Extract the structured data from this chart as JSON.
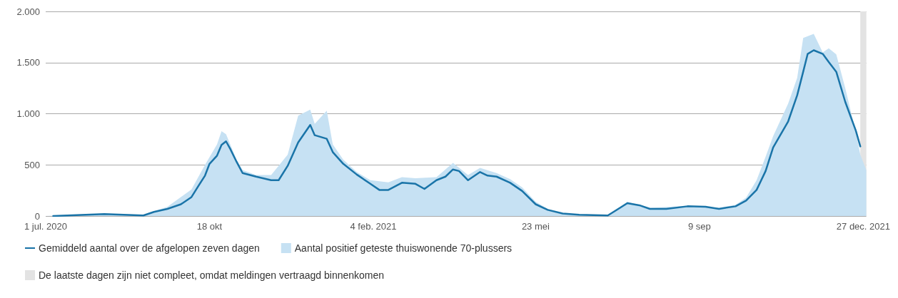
{
  "chart_data": {
    "type": "area",
    "legend": "bottom left",
    "grid": "y",
    "xlim": [
      "2020-07-01",
      "2021-12-29"
    ],
    "ylim": [
      0,
      2000
    ],
    "xticks": [
      {
        "value": "2020-07-01",
        "label": "1 jul. 2020"
      },
      {
        "value": "2020-10-18",
        "label": "18 okt"
      },
      {
        "value": "2021-02-04",
        "label": "4 feb. 2021"
      },
      {
        "value": "2021-05-23",
        "label": "23 mei"
      },
      {
        "value": "2021-09-09",
        "label": "9 sep"
      },
      {
        "value": "2021-12-27",
        "label": "27 dec. 2021"
      }
    ],
    "yticks": [
      0,
      {
        "value": 500,
        "label": "500"
      },
      {
        "value": 1000,
        "label": "1.000"
      },
      {
        "value": 1500,
        "label": "1.500"
      },
      {
        "value": 2000,
        "label": "2.000"
      }
    ],
    "series": [
      {
        "name": "Aantal positief geteste thuiswonende 70-plussers",
        "color": "#c6e1f3",
        "x": [
          "2020-07-01",
          "2020-08-09",
          "2020-09-04",
          "2020-09-20",
          "2020-10-06",
          "2020-10-15",
          "2020-10-23",
          "2020-10-26",
          "2020-10-29",
          "2020-11-05",
          "2020-11-09",
          "2020-11-18",
          "2020-11-28",
          "2020-12-09",
          "2020-12-16",
          "2020-12-24",
          "2020-12-27",
          "2021-01-04",
          "2021-01-08",
          "2021-01-15",
          "2021-01-24",
          "2021-02-02",
          "2021-02-14",
          "2021-02-23",
          "2021-03-04",
          "2021-03-18",
          "2021-03-29",
          "2021-04-08",
          "2021-04-16",
          "2021-04-27",
          "2021-05-06",
          "2021-05-14",
          "2021-05-23",
          "2021-05-31",
          "2021-06-10",
          "2021-06-21",
          "2021-07-10",
          "2021-07-23",
          "2021-08-07",
          "2021-09-01",
          "2021-09-22",
          "2021-10-03",
          "2021-10-10",
          "2021-10-17",
          "2021-10-23",
          "2021-10-28",
          "2021-11-07",
          "2021-11-13",
          "2021-11-17",
          "2021-11-24",
          "2021-11-30",
          "2021-12-04",
          "2021-12-09",
          "2021-12-15",
          "2021-12-22",
          "2021-12-25",
          "2021-12-29"
        ],
        "values": [
          0,
          25,
          10,
          90,
          260,
          500,
          700,
          830,
          800,
          550,
          450,
          400,
          400,
          600,
          980,
          1040,
          900,
          1030,
          700,
          550,
          430,
          350,
          330,
          380,
          370,
          380,
          520,
          400,
          470,
          420,
          360,
          280,
          140,
          70,
          30,
          15,
          8,
          140,
          80,
          100,
          80,
          110,
          180,
          350,
          580,
          780,
          1100,
          1350,
          1740,
          1780,
          1600,
          1640,
          1580,
          1250,
          820,
          600,
          450
        ]
      },
      {
        "type": "line",
        "name": "Gemiddeld aantal over de afgelopen zeven dagen",
        "color": "#1a74a8",
        "marker": "none",
        "line_style": "solid",
        "x": [
          "2020-07-06",
          "2020-08-09",
          "2020-09-04",
          "2020-09-11",
          "2020-09-20",
          "2020-09-29",
          "2020-10-06",
          "2020-10-10",
          "2020-10-15",
          "2020-10-18",
          "2020-10-23",
          "2020-10-26",
          "2020-10-29",
          "2020-11-01",
          "2020-11-05",
          "2020-11-09",
          "2020-11-18",
          "2020-11-28",
          "2020-12-03",
          "2020-12-09",
          "2020-12-16",
          "2020-12-24",
          "2020-12-27",
          "2021-01-04",
          "2021-01-08",
          "2021-01-15",
          "2021-01-24",
          "2021-02-02",
          "2021-02-08",
          "2021-02-14",
          "2021-02-23",
          "2021-03-04",
          "2021-03-10",
          "2021-03-18",
          "2021-03-24",
          "2021-03-29",
          "2021-04-02",
          "2021-04-08",
          "2021-04-16",
          "2021-04-21",
          "2021-04-27",
          "2021-05-06",
          "2021-05-14",
          "2021-05-23",
          "2021-05-31",
          "2021-06-10",
          "2021-06-21",
          "2021-07-10",
          "2021-07-17",
          "2021-07-23",
          "2021-07-31",
          "2021-08-07",
          "2021-08-18",
          "2021-09-01",
          "2021-09-13",
          "2021-09-22",
          "2021-10-03",
          "2021-10-10",
          "2021-10-17",
          "2021-10-23",
          "2021-10-28",
          "2021-11-07",
          "2021-11-13",
          "2021-11-17",
          "2021-11-20",
          "2021-11-24",
          "2021-11-30",
          "2021-12-04",
          "2021-12-09",
          "2021-12-15",
          "2021-12-22",
          "2021-12-25"
        ],
        "values": [
          0,
          20,
          5,
          40,
          70,
          115,
          185,
          280,
          395,
          510,
          590,
          695,
          730,
          650,
          530,
          420,
          385,
          350,
          350,
          490,
          720,
          890,
          790,
          755,
          625,
          510,
          405,
          315,
          255,
          255,
          325,
          315,
          265,
          350,
          385,
          455,
          440,
          350,
          430,
          395,
          385,
          325,
          245,
          115,
          60,
          25,
          12,
          5,
          70,
          125,
          105,
          70,
          70,
          95,
          90,
          70,
          95,
          150,
          255,
          440,
          670,
          925,
          1180,
          1410,
          1585,
          1620,
          1585,
          1505,
          1410,
          1115,
          835,
          680
        ]
      }
    ],
    "bands": [
      {
        "axis": "x",
        "from": "2021-12-25",
        "to": "2021-12-29",
        "label": "De laatste dagen zijn niet compleet, omdat meldingen vertraagd binnenkomen",
        "color": "#e3e3e3"
      }
    ]
  }
}
